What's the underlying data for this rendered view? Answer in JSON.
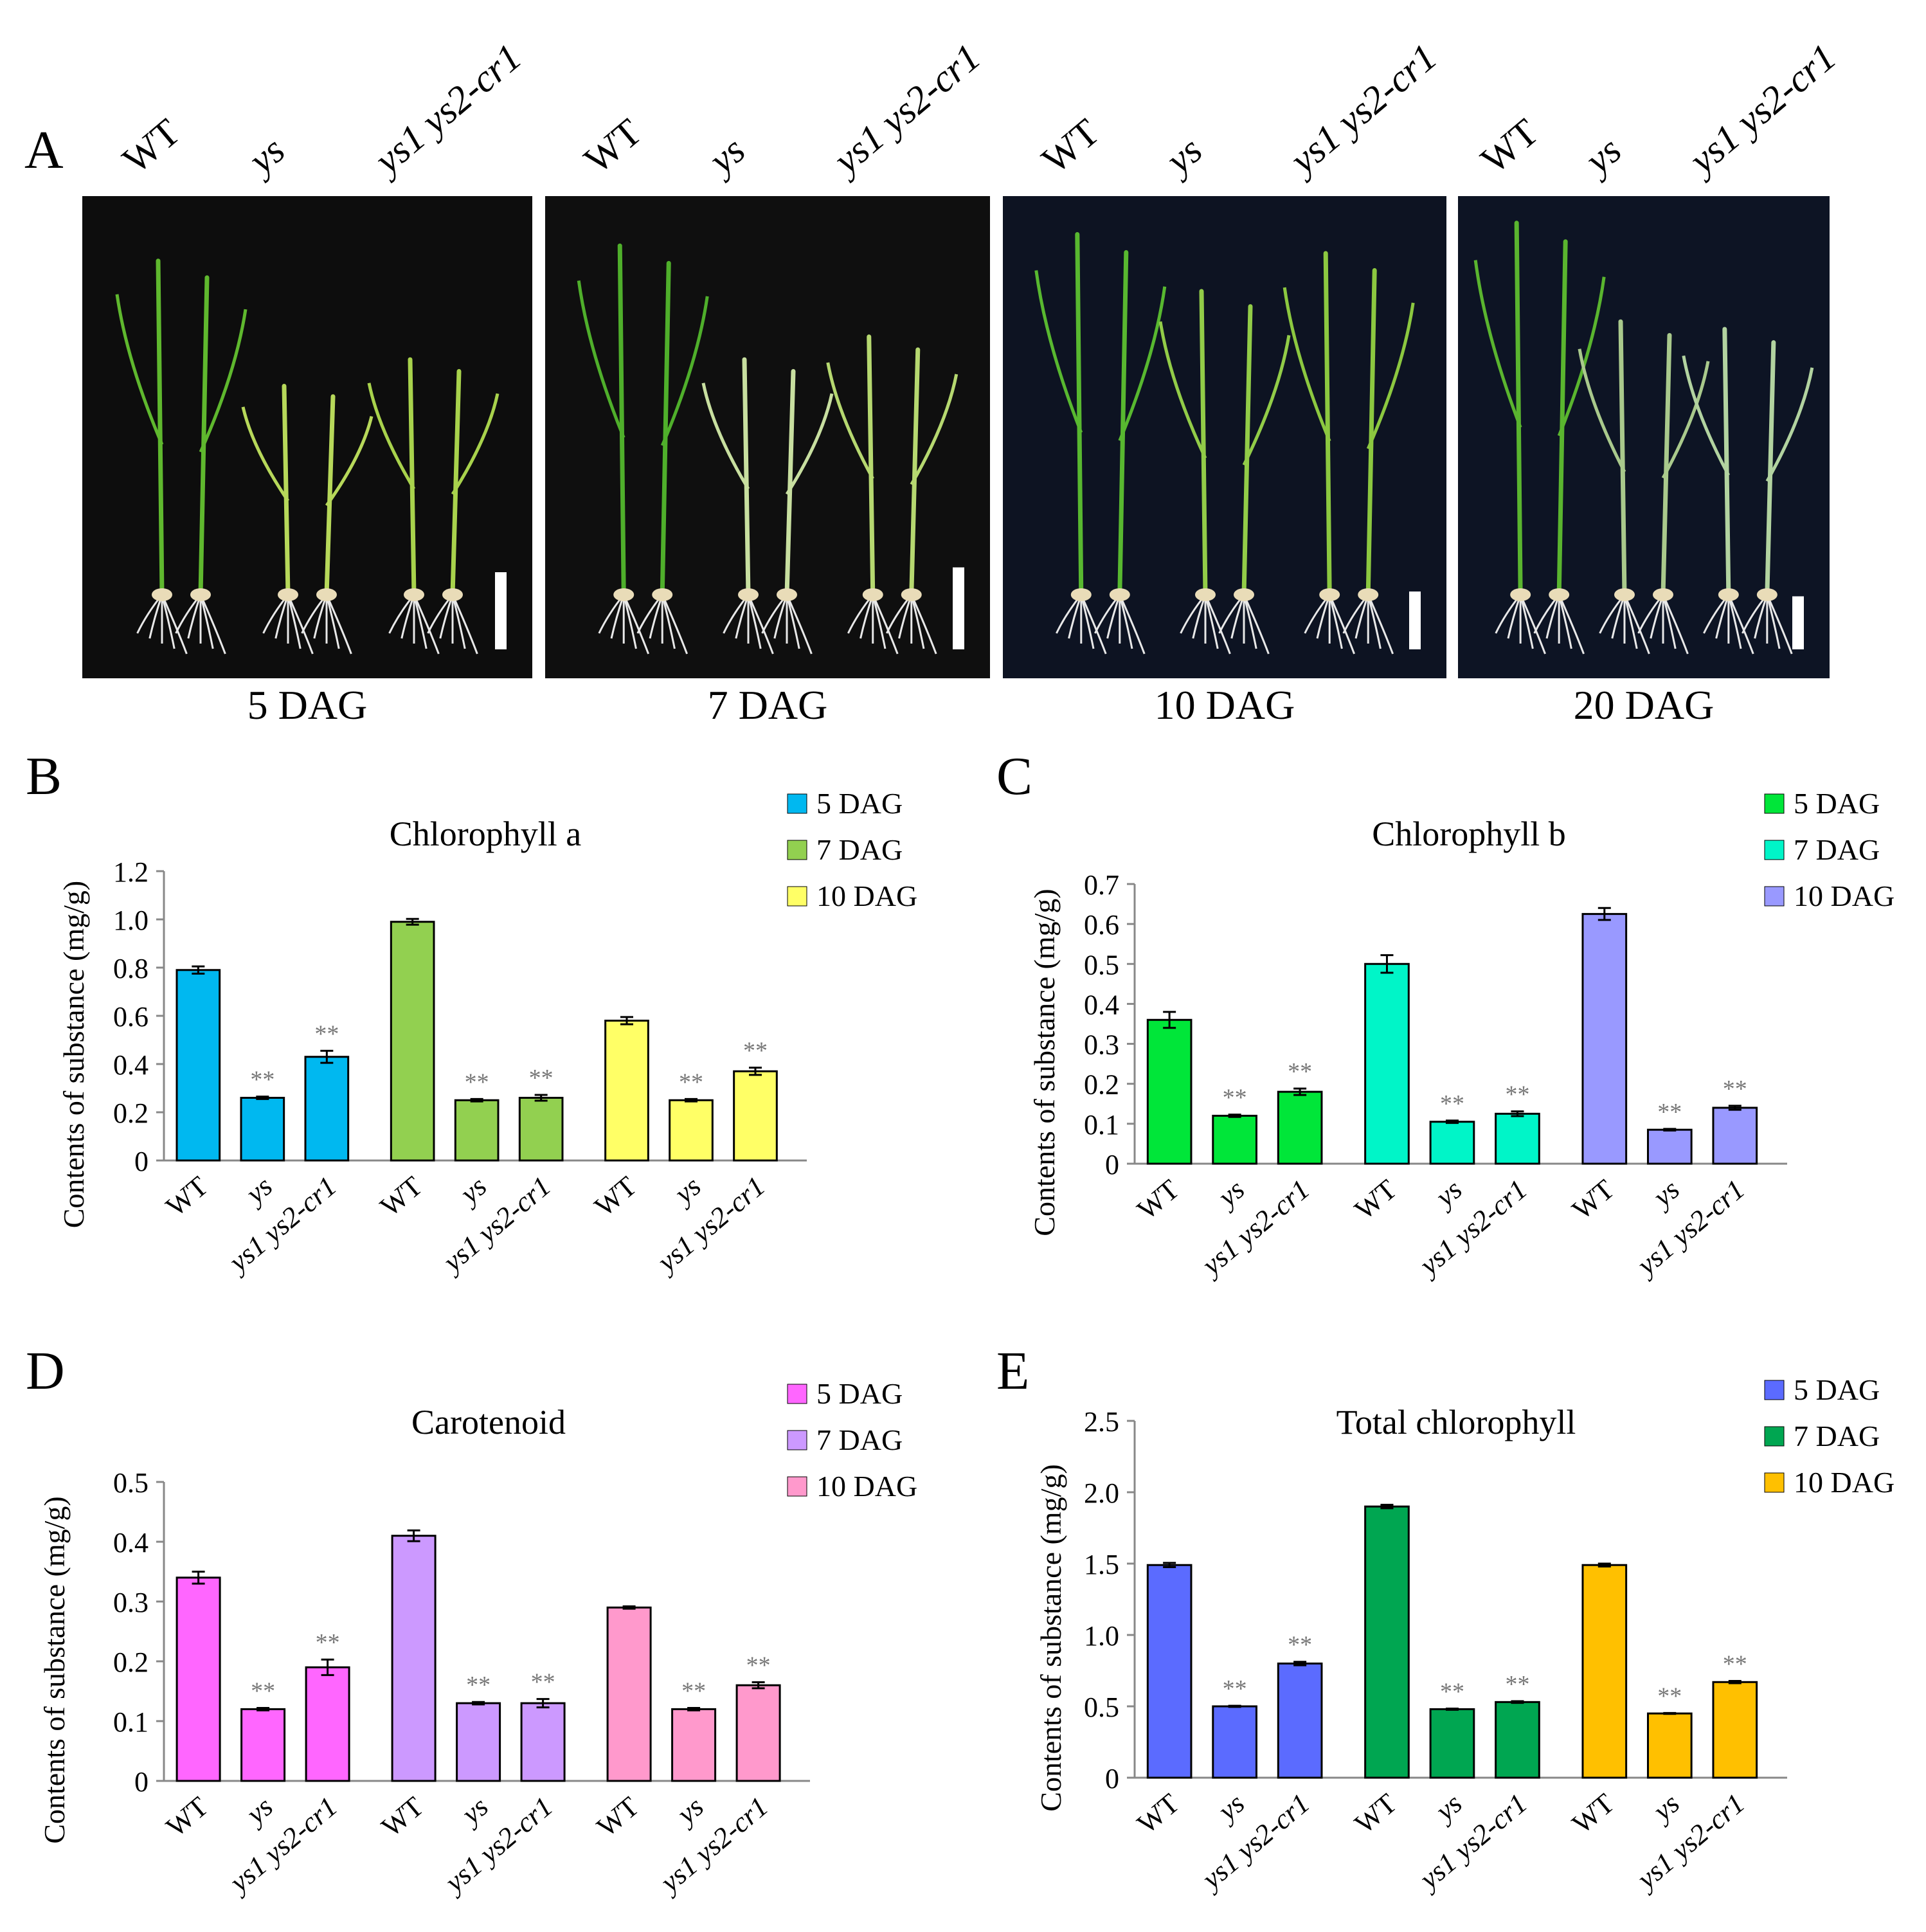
{
  "panel_a": {
    "letter": "A",
    "genotypes": [
      "WT",
      "ys",
      "ys1 ys2-cr1"
    ],
    "days": [
      "5 DAG",
      "7 DAG",
      "10 DAG",
      "20 DAG"
    ]
  },
  "chart_data": [
    {
      "letter": "B",
      "type": "bar",
      "title": "Chlorophyll a",
      "ylabel": "Contents of substance (mg/g)",
      "xlabel": "",
      "ylim": [
        0,
        1.2
      ],
      "yticks": [
        "0",
        "0.2",
        "0.4",
        "0.6",
        "0.8",
        "1.0",
        "1.2"
      ],
      "categories": [
        "WT",
        "ys",
        "ys1 ys2-cr1"
      ],
      "series": [
        {
          "name": "5 DAG",
          "color": "#00B8F0",
          "values": [
            0.79,
            0.26,
            0.43
          ],
          "errors": [
            0.015,
            0.005,
            0.025
          ],
          "sig": [
            "",
            "**",
            "**"
          ]
        },
        {
          "name": "7 DAG",
          "color": "#92D050",
          "values": [
            0.99,
            0.25,
            0.26
          ],
          "errors": [
            0.012,
            0.005,
            0.012
          ],
          "sig": [
            "",
            "**",
            "**"
          ]
        },
        {
          "name": "10 DAG",
          "color": "#FFFF66",
          "values": [
            0.58,
            0.25,
            0.37
          ],
          "errors": [
            0.015,
            0.005,
            0.015
          ],
          "sig": [
            "",
            "**",
            "**"
          ]
        }
      ]
    },
    {
      "letter": "C",
      "type": "bar",
      "title": "Chlorophyll b",
      "ylabel": "Contents of substance (mg/g)",
      "xlabel": "",
      "ylim": [
        0,
        0.7
      ],
      "yticks": [
        "0",
        "0.1",
        "0.2",
        "0.3",
        "0.4",
        "0.5",
        "0.6",
        "0.7"
      ],
      "categories": [
        "WT",
        "ys",
        "ys1 ys2-cr1"
      ],
      "series": [
        {
          "name": "5 DAG",
          "color": "#00E639",
          "values": [
            0.36,
            0.12,
            0.18
          ],
          "errors": [
            0.02,
            0.003,
            0.008
          ],
          "sig": [
            "",
            "**",
            "**"
          ]
        },
        {
          "name": "7 DAG",
          "color": "#00F5C8",
          "values": [
            0.5,
            0.105,
            0.125
          ],
          "errors": [
            0.022,
            0.003,
            0.006
          ],
          "sig": [
            "",
            "**",
            "**"
          ]
        },
        {
          "name": "10 DAG",
          "color": "#9999FF",
          "values": [
            0.625,
            0.085,
            0.14
          ],
          "errors": [
            0.015,
            0.002,
            0.005
          ],
          "sig": [
            "",
            "**",
            "**"
          ]
        }
      ]
    },
    {
      "letter": "D",
      "type": "bar",
      "title": "Carotenoid",
      "ylabel": "Contents of substance (mg/g)",
      "xlabel": "",
      "ylim": [
        0,
        0.5
      ],
      "yticks": [
        "0",
        "0.1",
        "0.2",
        "0.3",
        "0.4",
        "0.5"
      ],
      "categories": [
        "WT",
        "ys",
        "ys1 ys2-cr1"
      ],
      "series": [
        {
          "name": "5 DAG",
          "color": "#FF66FF",
          "values": [
            0.34,
            0.12,
            0.19
          ],
          "errors": [
            0.01,
            0.002,
            0.013
          ],
          "sig": [
            "",
            "**",
            "**"
          ]
        },
        {
          "name": "7 DAG",
          "color": "#CC99FF",
          "values": [
            0.41,
            0.13,
            0.13
          ],
          "errors": [
            0.009,
            0.002,
            0.007
          ],
          "sig": [
            "",
            "**",
            "**"
          ]
        },
        {
          "name": "10 DAG",
          "color": "#FF99CC",
          "values": [
            0.29,
            0.12,
            0.16
          ],
          "errors": [
            0.002,
            0.002,
            0.005
          ],
          "sig": [
            "",
            "**",
            "**"
          ]
        }
      ]
    },
    {
      "letter": "E",
      "type": "bar",
      "title": "Total chlorophyll",
      "ylabel": "Contents of substance (mg/g)",
      "xlabel": "",
      "ylim": [
        0,
        2.5
      ],
      "yticks": [
        "0",
        "0.5",
        "1.0",
        "1.5",
        "2.0",
        "2.5"
      ],
      "categories": [
        "WT",
        "ys",
        "ys1 ys2-cr1"
      ],
      "series": [
        {
          "name": "5 DAG",
          "color": "#5B6BFF",
          "values": [
            1.49,
            0.5,
            0.8
          ],
          "errors": [
            0.015,
            0.004,
            0.012
          ],
          "sig": [
            "",
            "**",
            "**"
          ]
        },
        {
          "name": "7 DAG",
          "color": "#00A651",
          "values": [
            1.9,
            0.48,
            0.53
          ],
          "errors": [
            0.012,
            0.004,
            0.006
          ],
          "sig": [
            "",
            "**",
            "**"
          ]
        },
        {
          "name": "10 DAG",
          "color": "#FFC000",
          "values": [
            1.49,
            0.45,
            0.67
          ],
          "errors": [
            0.01,
            0.003,
            0.008
          ],
          "sig": [
            "",
            "**",
            "**"
          ]
        }
      ]
    }
  ]
}
